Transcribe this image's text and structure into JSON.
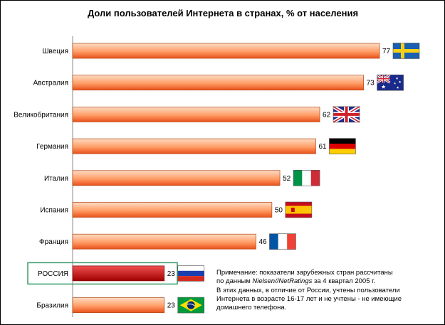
{
  "chart_data": {
    "type": "bar",
    "orientation": "horizontal",
    "title": "Доли пользователей Интернета в странах, % от населения",
    "categories": [
      "Швеция",
      "Австралия",
      "Великобритания",
      "Германия",
      "Италия",
      "Испания",
      "Франция",
      "РОССИЯ",
      "Бразилия"
    ],
    "values": [
      77,
      73,
      62,
      61,
      52,
      50,
      46,
      23,
      23
    ],
    "xlim": [
      0,
      80
    ],
    "grid": false,
    "legend": "none",
    "highlight_category": "РОССИЯ",
    "flags": [
      "sweden-flag",
      "australia-flag",
      "uk-flag",
      "germany-flag",
      "italy-flag",
      "spain-flag",
      "france-flag",
      "russia-flag",
      "brazil-flag"
    ]
  },
  "colors": {
    "bar_gradient_light": "#ffdcc4",
    "bar_gradient_mid": "#ff9d66",
    "bar_gradient_dark": "#e9511a",
    "highlight_gradient_light": "#f05050",
    "highlight_gradient_dark": "#a00000",
    "highlight_box": "#3a9a6a",
    "axis": "#888888"
  },
  "note": {
    "line1": "Примечание: показатели зарубежных стран рассчитаны",
    "line2_prefix": "по данным ",
    "line2_source": "Nielsen//NetRatings",
    "line2_suffix": " за 4 квартал 2005 г.",
    "line3": "В этих данных, в отличие от России, учтены пользователи",
    "line4": "Интернета в возрасте 16-17 лет и не учтены - не имеющие",
    "line5": "домашнего телефона."
  }
}
